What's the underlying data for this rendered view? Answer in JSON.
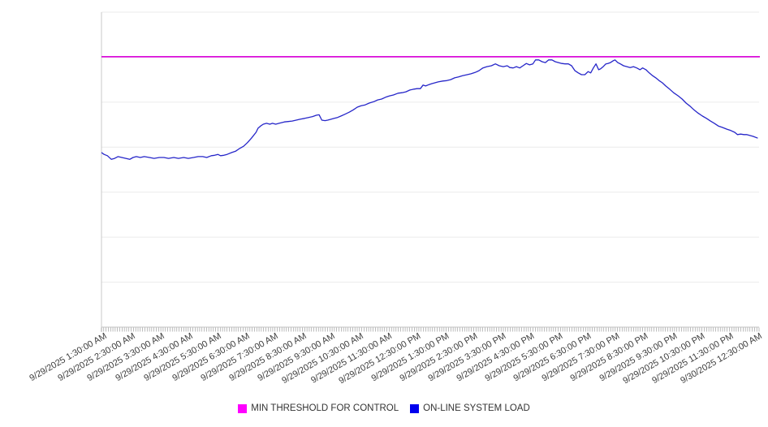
{
  "page": {
    "background": "#ffffff"
  },
  "chart_data": {
    "type": "line",
    "title": "",
    "xlabel": "",
    "ylabel": "",
    "grid": "horizontal-only",
    "legend_position": "bottom-center",
    "x_axis": {
      "labels": [
        "9/29/2025 1:30:00 AM",
        "9/29/2025 2:30:00 AM",
        "9/29/2025 3:30:00 AM",
        "9/29/2025 4:30:00 AM",
        "9/29/2025 5:30:00 AM",
        "9/29/2025 6:30:00 AM",
        "9/29/2025 7:30:00 AM",
        "9/29/2025 8:30:00 AM",
        "9/29/2025 9:30:00 AM",
        "9/29/2025 10:30:00 AM",
        "9/29/2025 11:30:00 AM",
        "9/29/2025 12:30:00 PM",
        "9/29/2025 1:30:00 PM",
        "9/29/2025 2:30:00 PM",
        "9/29/2025 3:30:00 PM",
        "9/29/2025 4:30:00 PM",
        "9/29/2025 5:30:00 PM",
        "9/29/2025 6:30:00 PM",
        "9/29/2025 7:30:00 PM",
        "9/29/2025 8:30:00 PM",
        "9/29/2025 9:30:00 PM",
        "9/29/2025 10:30:00 PM",
        "9/29/2025 11:30:00 PM",
        "9/30/2025 12:30:00 AM"
      ],
      "minor_tick_count": 288,
      "label_rotation_deg": -30
    },
    "y_axis": {
      "labeled": false,
      "ylim": [
        0,
        7
      ],
      "gridline_step": 1,
      "note": "no numeric y tick labels are shown; values are in relative grid units (1 unit = 1 gridline interval)"
    },
    "series": [
      {
        "name": "MIN THRESHOLD FOR CONTROL",
        "type": "threshold-line",
        "color": "#DA0EDA",
        "value": 6.01
      },
      {
        "name": "ON-LINE SYSTEM LOAD",
        "type": "line",
        "color": "#2626C9",
        "hourly_values": [
          3.84,
          3.75,
          3.76,
          3.75,
          3.84,
          4.06,
          4.52,
          4.66,
          4.69,
          4.92,
          5.13,
          5.3,
          5.48,
          5.66,
          5.8,
          5.84,
          5.87,
          5.68,
          5.91,
          5.73,
          5.21,
          4.69,
          4.37,
          4.2
        ],
        "detail_points": [
          [
            0.0,
            3.88
          ],
          [
            0.004,
            3.84
          ],
          [
            0.009,
            3.81
          ],
          [
            0.015,
            3.73
          ],
          [
            0.02,
            3.75
          ],
          [
            0.025,
            3.79
          ],
          [
            0.031,
            3.77
          ],
          [
            0.037,
            3.75
          ],
          [
            0.043,
            3.73
          ],
          [
            0.048,
            3.77
          ],
          [
            0.053,
            3.79
          ],
          [
            0.059,
            3.77
          ],
          [
            0.065,
            3.79
          ],
          [
            0.073,
            3.77
          ],
          [
            0.08,
            3.75
          ],
          [
            0.088,
            3.77
          ],
          [
            0.095,
            3.77
          ],
          [
            0.102,
            3.75
          ],
          [
            0.11,
            3.77
          ],
          [
            0.117,
            3.75
          ],
          [
            0.125,
            3.77
          ],
          [
            0.132,
            3.75
          ],
          [
            0.14,
            3.77
          ],
          [
            0.147,
            3.79
          ],
          [
            0.154,
            3.79
          ],
          [
            0.16,
            3.77
          ],
          [
            0.167,
            3.81
          ],
          [
            0.172,
            3.82
          ],
          [
            0.177,
            3.84
          ],
          [
            0.181,
            3.81
          ],
          [
            0.186,
            3.82
          ],
          [
            0.191,
            3.84
          ],
          [
            0.198,
            3.88
          ],
          [
            0.204,
            3.91
          ],
          [
            0.21,
            3.97
          ],
          [
            0.216,
            4.02
          ],
          [
            0.222,
            4.1
          ],
          [
            0.228,
            4.2
          ],
          [
            0.235,
            4.33
          ],
          [
            0.238,
            4.42
          ],
          [
            0.242,
            4.47
          ],
          [
            0.246,
            4.51
          ],
          [
            0.251,
            4.53
          ],
          [
            0.256,
            4.51
          ],
          [
            0.26,
            4.53
          ],
          [
            0.265,
            4.51
          ],
          [
            0.27,
            4.53
          ],
          [
            0.278,
            4.56
          ],
          [
            0.284,
            4.57
          ],
          [
            0.29,
            4.58
          ],
          [
            0.296,
            4.6
          ],
          [
            0.302,
            4.62
          ],
          [
            0.309,
            4.64
          ],
          [
            0.315,
            4.66
          ],
          [
            0.321,
            4.68
          ],
          [
            0.327,
            4.71
          ],
          [
            0.331,
            4.72
          ],
          [
            0.335,
            4.6
          ],
          [
            0.34,
            4.59
          ],
          [
            0.344,
            4.6
          ],
          [
            0.349,
            4.62
          ],
          [
            0.354,
            4.64
          ],
          [
            0.359,
            4.66
          ],
          [
            0.364,
            4.69
          ],
          [
            0.37,
            4.73
          ],
          [
            0.377,
            4.78
          ],
          [
            0.383,
            4.83
          ],
          [
            0.389,
            4.89
          ],
          [
            0.395,
            4.92
          ],
          [
            0.401,
            4.94
          ],
          [
            0.407,
            4.98
          ],
          [
            0.414,
            5.01
          ],
          [
            0.42,
            5.05
          ],
          [
            0.426,
            5.07
          ],
          [
            0.432,
            5.11
          ],
          [
            0.438,
            5.14
          ],
          [
            0.444,
            5.16
          ],
          [
            0.451,
            5.2
          ],
          [
            0.457,
            5.21
          ],
          [
            0.463,
            5.23
          ],
          [
            0.469,
            5.27
          ],
          [
            0.475,
            5.29
          ],
          [
            0.48,
            5.3
          ],
          [
            0.485,
            5.3
          ],
          [
            0.489,
            5.38
          ],
          [
            0.493,
            5.36
          ],
          [
            0.498,
            5.39
          ],
          [
            0.502,
            5.41
          ],
          [
            0.507,
            5.43
          ],
          [
            0.512,
            5.45
          ],
          [
            0.519,
            5.47
          ],
          [
            0.525,
            5.48
          ],
          [
            0.531,
            5.5
          ],
          [
            0.537,
            5.54
          ],
          [
            0.543,
            5.56
          ],
          [
            0.549,
            5.59
          ],
          [
            0.556,
            5.61
          ],
          [
            0.562,
            5.63
          ],
          [
            0.568,
            5.66
          ],
          [
            0.574,
            5.7
          ],
          [
            0.58,
            5.76
          ],
          [
            0.586,
            5.79
          ],
          [
            0.593,
            5.81
          ],
          [
            0.599,
            5.85
          ],
          [
            0.605,
            5.81
          ],
          [
            0.611,
            5.79
          ],
          [
            0.617,
            5.81
          ],
          [
            0.621,
            5.77
          ],
          [
            0.626,
            5.76
          ],
          [
            0.631,
            5.79
          ],
          [
            0.636,
            5.76
          ],
          [
            0.641,
            5.81
          ],
          [
            0.646,
            5.86
          ],
          [
            0.651,
            5.83
          ],
          [
            0.656,
            5.85
          ],
          [
            0.66,
            5.94
          ],
          [
            0.665,
            5.94
          ],
          [
            0.67,
            5.9
          ],
          [
            0.675,
            5.88
          ],
          [
            0.68,
            5.94
          ],
          [
            0.685,
            5.94
          ],
          [
            0.69,
            5.9
          ],
          [
            0.695,
            5.88
          ],
          [
            0.7,
            5.86
          ],
          [
            0.705,
            5.85
          ],
          [
            0.71,
            5.85
          ],
          [
            0.715,
            5.81
          ],
          [
            0.72,
            5.7
          ],
          [
            0.725,
            5.65
          ],
          [
            0.73,
            5.61
          ],
          [
            0.735,
            5.61
          ],
          [
            0.74,
            5.68
          ],
          [
            0.744,
            5.65
          ],
          [
            0.748,
            5.76
          ],
          [
            0.752,
            5.85
          ],
          [
            0.756,
            5.72
          ],
          [
            0.759,
            5.74
          ],
          [
            0.763,
            5.79
          ],
          [
            0.767,
            5.85
          ],
          [
            0.77,
            5.86
          ],
          [
            0.774,
            5.88
          ],
          [
            0.778,
            5.92
          ],
          [
            0.781,
            5.94
          ],
          [
            0.785,
            5.88
          ],
          [
            0.789,
            5.85
          ],
          [
            0.794,
            5.81
          ],
          [
            0.799,
            5.79
          ],
          [
            0.804,
            5.77
          ],
          [
            0.809,
            5.79
          ],
          [
            0.814,
            5.76
          ],
          [
            0.819,
            5.72
          ],
          [
            0.823,
            5.76
          ],
          [
            0.828,
            5.72
          ],
          [
            0.833,
            5.65
          ],
          [
            0.838,
            5.59
          ],
          [
            0.843,
            5.54
          ],
          [
            0.848,
            5.48
          ],
          [
            0.853,
            5.43
          ],
          [
            0.858,
            5.36
          ],
          [
            0.864,
            5.29
          ],
          [
            0.87,
            5.21
          ],
          [
            0.877,
            5.14
          ],
          [
            0.883,
            5.07
          ],
          [
            0.889,
            4.98
          ],
          [
            0.895,
            4.91
          ],
          [
            0.901,
            4.83
          ],
          [
            0.907,
            4.76
          ],
          [
            0.914,
            4.69
          ],
          [
            0.92,
            4.64
          ],
          [
            0.926,
            4.58
          ],
          [
            0.932,
            4.53
          ],
          [
            0.938,
            4.47
          ],
          [
            0.944,
            4.44
          ],
          [
            0.951,
            4.4
          ],
          [
            0.957,
            4.37
          ],
          [
            0.963,
            4.33
          ],
          [
            0.967,
            4.28
          ],
          [
            0.972,
            4.29
          ],
          [
            0.977,
            4.28
          ],
          [
            0.981,
            4.28
          ],
          [
            0.986,
            4.26
          ],
          [
            0.991,
            4.24
          ],
          [
            0.998,
            4.2
          ]
        ]
      }
    ],
    "legend": {
      "items": [
        {
          "label": "MIN THRESHOLD FOR CONTROL",
          "color": "#FF00FF"
        },
        {
          "label": "ON-LINE SYSTEM LOAD",
          "color": "#0000EE"
        }
      ]
    }
  },
  "colors": {
    "gridline": "#ebebeb",
    "axis_line": "#c2c2c2",
    "y_axis_line": "#c9c9c9",
    "tick": "#8f8f8f",
    "label_text": "#3d3d3d"
  }
}
